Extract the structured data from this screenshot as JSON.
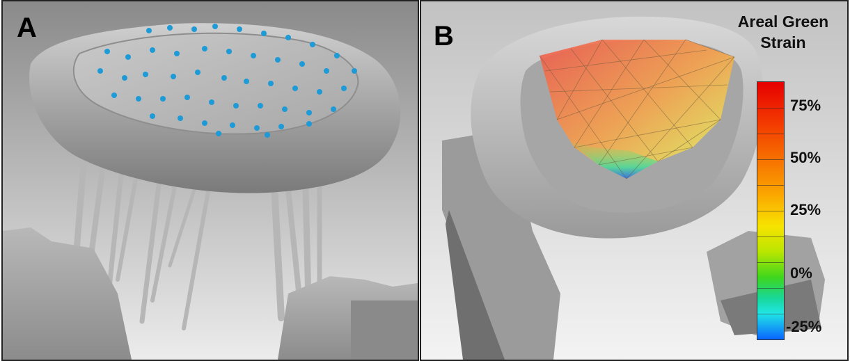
{
  "panels": {
    "a": {
      "label": "A"
    },
    "b": {
      "label": "B"
    }
  },
  "colorbar": {
    "title_line1": "Areal Green",
    "title_line2": "Strain",
    "labels": [
      "75%",
      "50%",
      "25%",
      "0%",
      "-25%"
    ],
    "scale_top_color": "#e60000",
    "scale_bottom_color": "#0a64ff"
  },
  "marker_color": "#1e9ad6"
}
